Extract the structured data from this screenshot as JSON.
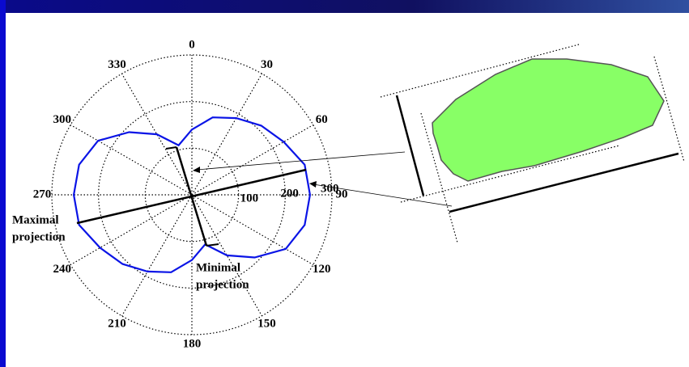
{
  "chart_data": {
    "type": "polar",
    "theta": [
      0,
      15,
      30,
      45,
      60,
      75,
      90,
      105,
      120,
      135,
      150,
      165,
      180,
      195,
      210,
      225,
      240,
      255,
      270,
      285,
      300,
      315,
      330,
      345
    ],
    "series": [
      {
        "color": "#0a14e6",
        "r": [
          140,
          172,
          190,
          210,
          227,
          250,
          253,
          250,
          232,
          190,
          150,
          110,
          140,
          172,
          190,
          210,
          227,
          250,
          253,
          250,
          232,
          190,
          150,
          110
        ]
      }
    ],
    "rlim": [
      0,
      300
    ],
    "rticks": [
      100,
      200,
      300
    ],
    "thetaticks": [
      0,
      30,
      60,
      90,
      120,
      150,
      180,
      210,
      240,
      270,
      300,
      330
    ],
    "grid": true,
    "annotations": [
      [
        "Maximal",
        "projection"
      ],
      [
        "Minimal",
        "projection"
      ]
    ]
  }
}
